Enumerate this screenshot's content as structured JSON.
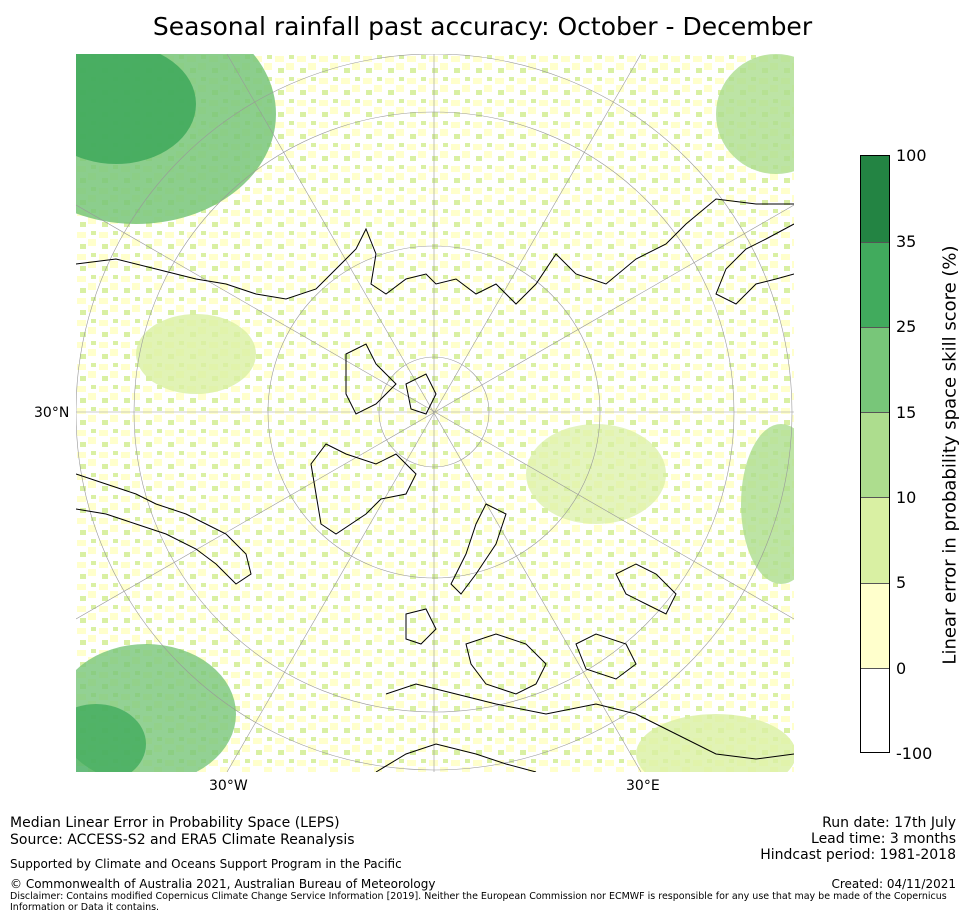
{
  "title": "Seasonal rainfall past accuracy: October - December",
  "map": {
    "lat_label": "30°N",
    "lon_labels": [
      "30°W",
      "30°E"
    ],
    "colors": {
      "c1": "#ffffcc",
      "c2": "#d9f0a3",
      "c3": "#addd8e",
      "c4": "#78c679",
      "c5": "#41ab5d",
      "c6": "#238443",
      "coast": "#000000",
      "grid": "#999999"
    }
  },
  "colorbar": {
    "title": "Linear error in probability space skill score (%)",
    "ticks": [
      "100",
      "35",
      "25",
      "15",
      "10",
      "5",
      "0",
      "-100"
    ],
    "colors": [
      "#238443",
      "#41ab5d",
      "#78c679",
      "#addd8e",
      "#d9f0a3",
      "#ffffcc",
      "#ffffff"
    ]
  },
  "footer": {
    "line1": "Median Linear Error in Probability Space (LEPS)",
    "line2": "Source: ACCESS-S2 and ERA5 Climate Reanalysis",
    "support": "Supported by Climate and Oceans Support Program in the Pacific",
    "copyright": "© Commonwealth of Australia 2021, Australian Bureau of Meteorology",
    "disclaimer": "Disclaimer: Contains modified Copernicus Climate Change Service Information [2019]. Neither the European Commission nor ECMWF is responsible for any use that may be made of the Copernicus Information or Data it contains.",
    "run_date": "Run date: 17th July",
    "lead_time": "Lead time: 3 months",
    "hindcast": "Hindcast period: 1981-2018",
    "created": "Created: 04/11/2021"
  }
}
